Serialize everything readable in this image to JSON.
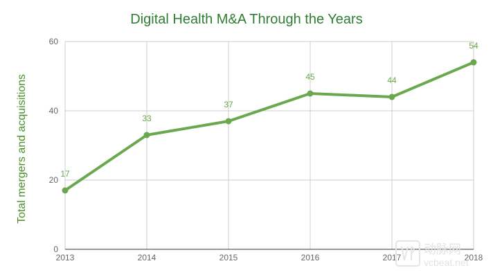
{
  "chart_data": {
    "type": "line",
    "title": "Digital Health M&A Through the Years",
    "xlabel": "",
    "ylabel": "Total mergers and acquisitions",
    "categories": [
      "2013",
      "2014",
      "2015",
      "2016",
      "2017",
      "2018"
    ],
    "series": [
      {
        "name": "Total mergers and acquisitions",
        "values": [
          17,
          33,
          37,
          45,
          44,
          54
        ],
        "color": "#6aa84f"
      }
    ],
    "ylim": [
      0,
      60
    ],
    "yticks": [
      0,
      20,
      40,
      60
    ],
    "grid": true,
    "legend": "none"
  },
  "watermark": {
    "cn_text": "动脉网",
    "url": "vcbeat.net"
  },
  "colors": {
    "title": "#2e7d32",
    "axis_label": "#4a8f2a",
    "line": "#6aa84f",
    "grid": "#cccccc",
    "axis": "#333333",
    "tick": "#666666"
  }
}
